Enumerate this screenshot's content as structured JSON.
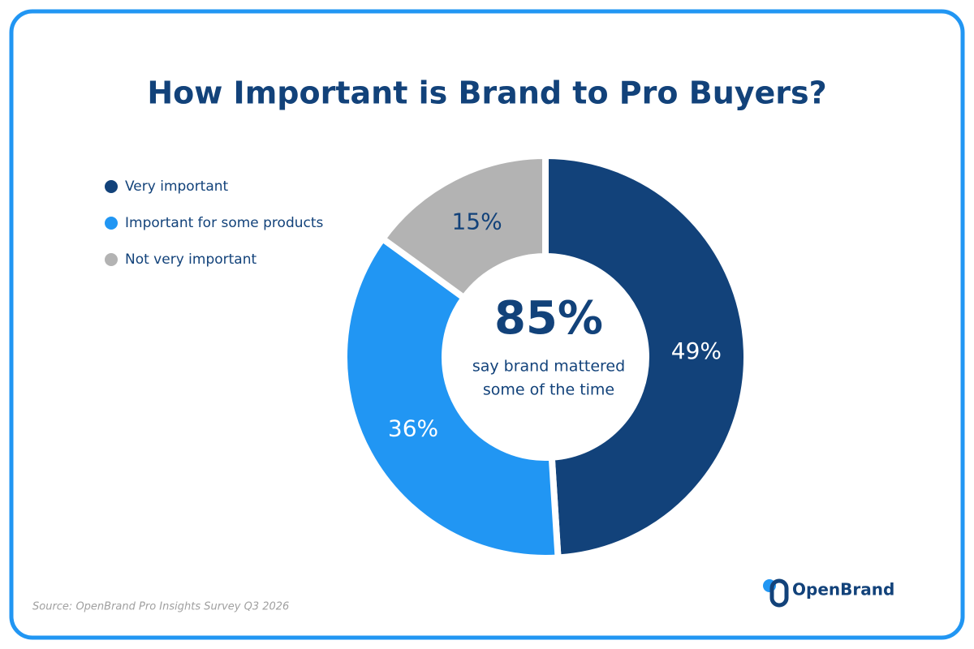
{
  "chart_data": {
    "type": "donut",
    "title": "How Important is Brand to Pro Buyers?",
    "categories": [
      "Very important",
      "Important for some products",
      "Not very important"
    ],
    "values": [
      49,
      36,
      15
    ],
    "value_labels": [
      "49%",
      "36%",
      "15%"
    ],
    "colors": [
      "#12427a",
      "#2196f3",
      "#b3b3b3"
    ],
    "label_colors": [
      "#ffffff",
      "#ffffff",
      "#12427a"
    ],
    "center_value": "85%",
    "center_text": [
      "say brand mattered",
      "some of the time"
    ],
    "legend": "top-left",
    "source": "Source: OpenBrand Pro Insights Survey Q3 2026",
    "logo": "OpenBrand"
  }
}
